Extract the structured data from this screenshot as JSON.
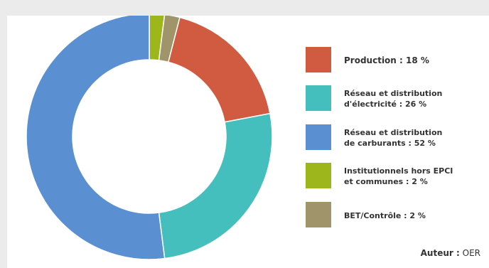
{
  "chart_data": {
    "type": "pie",
    "variant": "donut",
    "legend_position": "right",
    "slices": [
      {
        "label": "Production",
        "value": 18,
        "display": "Production : 18 %",
        "color": "#d15b40"
      },
      {
        "label": "Réseau et distribution d'électricité",
        "value": 26,
        "display": "Réseau et distribution\nd'électricité : 26 %",
        "color": "#45bfbe"
      },
      {
        "label": "Réseau et distribution de carburants",
        "value": 52,
        "display": "Réseau et distribution\nde carburants : 52 %",
        "color": "#5a8fd1"
      },
      {
        "label": "Institutionnels hors EPCI et communes",
        "value": 2,
        "display": "Institutionnels hors EPCI\net communes : 2 %",
        "color": "#9cb61c"
      },
      {
        "label": "BET/Contrôle",
        "value": 2,
        "display": "BET/Contrôle : 2 %",
        "color": "#a0946a"
      }
    ]
  },
  "author": {
    "label": "Auteur :",
    "value": "OER"
  }
}
